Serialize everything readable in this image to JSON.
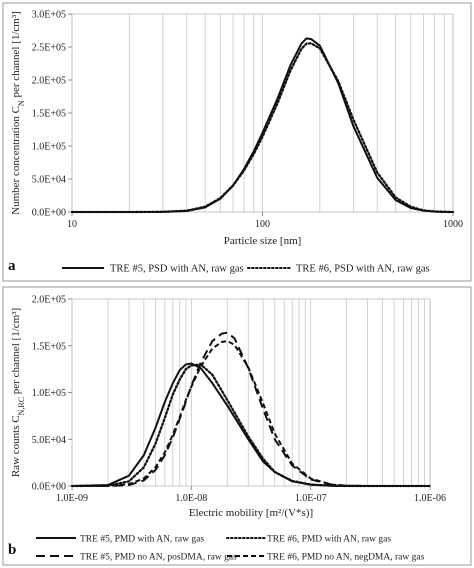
{
  "panels": [
    {
      "label": "a",
      "chart_data": {
        "type": "line",
        "xscale": "log",
        "xlim": [
          10,
          1000
        ],
        "ylim": [
          0,
          300000
        ],
        "xlabel": "Particle size [nm]",
        "ylabel": "Number concentration C_N per channel [1/cm³]",
        "ylabel_main": "Number concentration C",
        "ylabel_sub": "N",
        "ylabel_rest": " per channel [1/cm³]",
        "x_ticks": [
          10,
          100,
          1000
        ],
        "x_tick_labels": [
          "10",
          "100",
          "1000"
        ],
        "y_ticks": [
          0,
          50000,
          100000,
          150000,
          200000,
          250000,
          300000
        ],
        "y_tick_labels": [
          "0.0E+00",
          "5.0E+04",
          "1.0E+05",
          "1.5E+05",
          "2.0E+05",
          "2.5E+05",
          "3.0E+05"
        ],
        "grid": "log-vertical",
        "legend_position": "bottom",
        "series": [
          {
            "name": "TRE #5, PSD with AN, raw gas",
            "style": "solid",
            "x": [
              10,
              20,
              30,
              40,
              50,
              60,
              70,
              80,
              90,
              100,
              120,
              140,
              160,
              170,
              180,
              200,
              250,
              300,
              400,
              500,
              600,
              700,
              800,
              900,
              1000
            ],
            "values": [
              0,
              0,
              200,
              1500,
              7000,
              20000,
              40000,
              65000,
              92000,
              120000,
              172000,
              222000,
              255000,
              263000,
              262000,
              252000,
              195000,
              130000,
              52000,
              18000,
              6000,
              2000,
              600,
              150,
              0
            ]
          },
          {
            "name": "TRE #6, PSD with AN, raw gas",
            "style": "dotted",
            "x": [
              10,
              20,
              30,
              40,
              50,
              60,
              70,
              80,
              90,
              100,
              120,
              140,
              160,
              170,
              180,
              200,
              250,
              300,
              400,
              500,
              600,
              700,
              800,
              900,
              1000
            ],
            "values": [
              0,
              0,
              300,
              2000,
              8000,
              21000,
              40000,
              63000,
              88000,
              114000,
              165000,
              214000,
              247000,
              255000,
              255500,
              248000,
              198000,
              140000,
              60000,
              22000,
              8000,
              2500,
              800,
              200,
              0
            ]
          }
        ]
      }
    },
    {
      "label": "b",
      "chart_data": {
        "type": "line",
        "xscale": "log",
        "xlim": [
          1e-09,
          1e-06
        ],
        "ylim": [
          0,
          200000
        ],
        "xlabel": "Electric mobility [m²/(V*s)]",
        "ylabel": "Raw counts C_N,RC per channel [1/cm³]",
        "ylabel_main": "Raw counts C",
        "ylabel_sub": "N,RC",
        "ylabel_rest": " per channel [1/cm³]",
        "x_ticks": [
          1e-09,
          1e-08,
          1e-07,
          1e-06
        ],
        "x_tick_labels": [
          "1.0E-09",
          "1.0E-08",
          "1.0E-07",
          "1.0E-06"
        ],
        "y_ticks": [
          0,
          50000,
          100000,
          150000,
          200000
        ],
        "y_tick_labels": [
          "0.0E+00",
          "5.0E+04",
          "1.0E+05",
          "1.5E+05",
          "2.0E+05"
        ],
        "grid": "log-vertical",
        "legend_position": "bottom",
        "series": [
          {
            "name": "TRE #5, PMD with AN, raw gas",
            "style": "solid",
            "x": [
              1e-09,
              2e-09,
              3e-09,
              4e-09,
              5e-09,
              6e-09,
              7e-09,
              8e-09,
              9e-09,
              1e-08,
              1.2e-08,
              1.5e-08,
              2e-08,
              3e-08,
              4e-08,
              5e-08,
              7e-08,
              1e-07,
              1.5e-07,
              2e-07,
              3e-07,
              5e-07,
              1e-06
            ],
            "values": [
              0,
              1000,
              11000,
              33000,
              62000,
              90000,
              110000,
              124000,
              130000,
              131000,
              126000,
              110000,
              86000,
              50000,
              26000,
              15000,
              5000,
              1500,
              300,
              0,
              0,
              0,
              0
            ]
          },
          {
            "name": "TRE #6, PMD with AN, raw gas",
            "style": "dotted",
            "x": [
              1e-09,
              2e-09,
              3e-09,
              4e-09,
              5e-09,
              6e-09,
              7e-09,
              8e-09,
              9e-09,
              1e-08,
              1.2e-08,
              1.5e-08,
              2e-08,
              3e-08,
              4e-08,
              5e-08,
              7e-08,
              1e-07,
              1.5e-07,
              2e-07,
              3e-07,
              5e-07,
              1e-06
            ],
            "values": [
              0,
              300,
              5000,
              20000,
              45000,
              73000,
              98000,
              114000,
              125000,
              129000,
              130000,
              119000,
              92000,
              53000,
              29000,
              15000,
              5500,
              1500,
              300,
              0,
              0,
              0,
              0
            ]
          },
          {
            "name": "TRE #5, PMD no AN, posDMA, raw gas",
            "style": "long-dash",
            "x": [
              1e-09,
              2e-09,
              3e-09,
              4e-09,
              5e-09,
              6e-09,
              7e-09,
              8e-09,
              9e-09,
              1e-08,
              1.2e-08,
              1.5e-08,
              1.8e-08,
              2e-08,
              2.3e-08,
              3e-08,
              4e-08,
              5e-08,
              7e-08,
              1e-07,
              1.5e-07,
              2e-07,
              3e-07,
              5e-07,
              1e-06
            ],
            "values": [
              0,
              0,
              1000,
              6000,
              17000,
              33000,
              52000,
              72000,
              90000,
              107000,
              132000,
              155000,
              163000,
              164000,
              158000,
              126000,
              82000,
              50000,
              22000,
              7000,
              1500,
              300,
              0,
              0,
              0
            ]
          },
          {
            "name": "TRE #6, PMD no AN, negDMA, raw gas",
            "style": "short-dash",
            "x": [
              1e-09,
              2e-09,
              3e-09,
              4e-09,
              5e-09,
              6e-09,
              7e-09,
              8e-09,
              9e-09,
              1e-08,
              1.2e-08,
              1.5e-08,
              1.8e-08,
              2e-08,
              2.3e-08,
              3e-08,
              4e-08,
              5e-08,
              7e-08,
              1e-07,
              1.5e-07,
              2e-07,
              3e-07,
              5e-07,
              1e-06
            ],
            "values": [
              0,
              0,
              2000,
              8000,
              20000,
              36000,
              55000,
              74000,
              92000,
              106000,
              128000,
              147000,
              154000,
              155000,
              151000,
              127000,
              88000,
              56000,
              24000,
              8000,
              1500,
              300,
              0,
              0,
              0
            ]
          }
        ]
      }
    }
  ]
}
